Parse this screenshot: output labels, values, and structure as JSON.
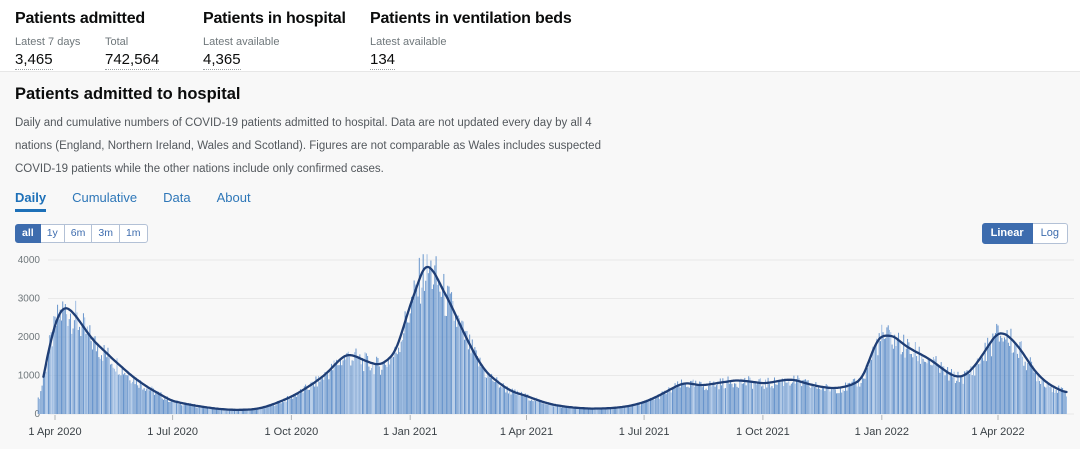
{
  "headline_stats": [
    {
      "title": "Patients admitted",
      "metrics": [
        {
          "label": "Latest 7 days",
          "value": "3,465"
        },
        {
          "label": "Total",
          "value": "742,564"
        }
      ]
    },
    {
      "title": "Patients in hospital",
      "metrics": [
        {
          "label": "Latest available",
          "value": "4,365"
        }
      ]
    },
    {
      "title": "Patients in ventilation beds",
      "metrics": [
        {
          "label": "Latest available",
          "value": "134"
        }
      ]
    }
  ],
  "card": {
    "title": "Patients admitted to hospital",
    "description_lines": [
      "Daily and cumulative numbers of COVID-19 patients admitted to hospital. Data are not updated every day by all 4",
      "nations (England, Northern Ireland, Wales and Scotland). Figures are not comparable as Wales includes suspected",
      "COVID-19 patients while the other nations include only confirmed cases."
    ],
    "tabs": [
      {
        "label": "Daily",
        "active": true
      },
      {
        "label": "Cumulative",
        "active": false
      },
      {
        "label": "Data",
        "active": false
      },
      {
        "label": "About",
        "active": false
      }
    ],
    "range_buttons": [
      {
        "label": "all",
        "active": true
      },
      {
        "label": "1y",
        "active": false
      },
      {
        "label": "6m",
        "active": false
      },
      {
        "label": "3m",
        "active": false
      },
      {
        "label": "1m",
        "active": false
      }
    ],
    "scale_toggle": [
      {
        "label": "Linear",
        "active": true
      },
      {
        "label": "Log",
        "active": false
      }
    ]
  },
  "colors": {
    "bar": "#6190ca",
    "bar_light": "#9cbbe2",
    "line": "#1f3e75",
    "grid": "#e9e9e9",
    "y_axis_text": "#6f777b",
    "x_axis_text": "#3a4146",
    "tick": "#b1b4b6",
    "accent_blue": "#3d6cae",
    "tab_blue": "#1d70b8"
  },
  "chart_data": {
    "type": "bar+line",
    "xlabel": "",
    "ylabel": "",
    "ylim": [
      0,
      4200
    ],
    "grid": true,
    "legend": "none",
    "y_ticks": [
      0,
      1000,
      2000,
      3000,
      4000
    ],
    "x_ticks": [
      {
        "label": "1 Apr 2020",
        "date": "2020-04-01"
      },
      {
        "label": "1 Jul 2020",
        "date": "2020-07-01"
      },
      {
        "label": "1 Oct 2020",
        "date": "2020-10-01"
      },
      {
        "label": "1 Jan 2021",
        "date": "2021-01-01"
      },
      {
        "label": "1 Apr 2021",
        "date": "2021-04-01"
      },
      {
        "label": "1 Jul 2021",
        "date": "2021-07-01"
      },
      {
        "label": "1 Oct 2021",
        "date": "2021-10-01"
      },
      {
        "label": "1 Jan 2022",
        "date": "2022-01-01"
      },
      {
        "label": "1 Apr 2022",
        "date": "2022-04-01"
      }
    ],
    "series": [
      {
        "name": "daily-admissions",
        "type": "bar",
        "derived_from": "7-day-average",
        "variation": [
          0.78,
          1.16
        ],
        "cap": 4150
      },
      {
        "name": "7-day-average",
        "type": "line",
        "line_start": "2020-03-23",
        "points": [
          [
            "2020-03-19",
            380
          ],
          [
            "2020-03-21",
            600
          ],
          [
            "2020-03-23",
            1000
          ],
          [
            "2020-03-26",
            1450
          ],
          [
            "2020-03-29",
            1950
          ],
          [
            "2020-04-01",
            2320
          ],
          [
            "2020-04-04",
            2600
          ],
          [
            "2020-04-08",
            2780
          ],
          [
            "2020-04-11",
            2750
          ],
          [
            "2020-04-15",
            2640
          ],
          [
            "2020-04-18",
            2500
          ],
          [
            "2020-04-22",
            2320
          ],
          [
            "2020-04-26",
            2120
          ],
          [
            "2020-05-01",
            1900
          ],
          [
            "2020-05-06",
            1740
          ],
          [
            "2020-05-11",
            1580
          ],
          [
            "2020-05-16",
            1420
          ],
          [
            "2020-05-21",
            1270
          ],
          [
            "2020-05-26",
            1120
          ],
          [
            "2020-06-01",
            950
          ],
          [
            "2020-06-08",
            780
          ],
          [
            "2020-06-15",
            630
          ],
          [
            "2020-06-22",
            500
          ],
          [
            "2020-06-27",
            400
          ],
          [
            "2020-07-01",
            340
          ],
          [
            "2020-07-10",
            270
          ],
          [
            "2020-07-20",
            210
          ],
          [
            "2020-08-01",
            150
          ],
          [
            "2020-08-10",
            120
          ],
          [
            "2020-08-20",
            105
          ],
          [
            "2020-09-01",
            120
          ],
          [
            "2020-09-08",
            160
          ],
          [
            "2020-09-15",
            230
          ],
          [
            "2020-09-22",
            320
          ],
          [
            "2020-10-01",
            450
          ],
          [
            "2020-10-08",
            580
          ],
          [
            "2020-10-15",
            730
          ],
          [
            "2020-10-22",
            890
          ],
          [
            "2020-10-29",
            1080
          ],
          [
            "2020-11-05",
            1330
          ],
          [
            "2020-11-10",
            1490
          ],
          [
            "2020-11-14",
            1545
          ],
          [
            "2020-11-19",
            1510
          ],
          [
            "2020-11-26",
            1400
          ],
          [
            "2020-12-02",
            1320
          ],
          [
            "2020-12-08",
            1280
          ],
          [
            "2020-12-12",
            1340
          ],
          [
            "2020-12-16",
            1450
          ],
          [
            "2020-12-20",
            1600
          ],
          [
            "2020-12-24",
            1950
          ],
          [
            "2020-12-28",
            2400
          ],
          [
            "2021-01-01",
            2840
          ],
          [
            "2021-01-05",
            3180
          ],
          [
            "2021-01-09",
            3620
          ],
          [
            "2021-01-13",
            3870
          ],
          [
            "2021-01-17",
            3800
          ],
          [
            "2021-01-21",
            3600
          ],
          [
            "2021-01-25",
            3310
          ],
          [
            "2021-02-01",
            2870
          ],
          [
            "2021-02-08",
            2360
          ],
          [
            "2021-02-15",
            1870
          ],
          [
            "2021-02-22",
            1430
          ],
          [
            "2021-03-01",
            1080
          ],
          [
            "2021-03-08",
            880
          ],
          [
            "2021-03-15",
            700
          ],
          [
            "2021-03-22",
            570
          ],
          [
            "2021-04-01",
            470
          ],
          [
            "2021-04-08",
            380
          ],
          [
            "2021-04-15",
            300
          ],
          [
            "2021-04-22",
            240
          ],
          [
            "2021-05-01",
            190
          ],
          [
            "2021-05-10",
            160
          ],
          [
            "2021-05-20",
            140
          ],
          [
            "2021-06-01",
            145
          ],
          [
            "2021-06-10",
            165
          ],
          [
            "2021-06-18",
            200
          ],
          [
            "2021-06-25",
            250
          ],
          [
            "2021-07-02",
            320
          ],
          [
            "2021-07-09",
            420
          ],
          [
            "2021-07-16",
            540
          ],
          [
            "2021-07-23",
            670
          ],
          [
            "2021-07-29",
            770
          ],
          [
            "2021-08-03",
            805
          ],
          [
            "2021-08-09",
            770
          ],
          [
            "2021-08-14",
            745
          ],
          [
            "2021-08-20",
            765
          ],
          [
            "2021-08-27",
            805
          ],
          [
            "2021-09-03",
            840
          ],
          [
            "2021-09-10",
            875
          ],
          [
            "2021-09-17",
            860
          ],
          [
            "2021-09-24",
            830
          ],
          [
            "2021-10-01",
            795
          ],
          [
            "2021-10-08",
            825
          ],
          [
            "2021-10-15",
            870
          ],
          [
            "2021-10-21",
            895
          ],
          [
            "2021-10-27",
            875
          ],
          [
            "2021-11-03",
            800
          ],
          [
            "2021-11-10",
            740
          ],
          [
            "2021-11-17",
            695
          ],
          [
            "2021-11-24",
            670
          ],
          [
            "2021-12-01",
            690
          ],
          [
            "2021-12-07",
            740
          ],
          [
            "2021-12-12",
            810
          ],
          [
            "2021-12-16",
            900
          ],
          [
            "2021-12-20",
            1180
          ],
          [
            "2021-12-24",
            1550
          ],
          [
            "2021-12-28",
            1880
          ],
          [
            "2022-01-01",
            2040
          ],
          [
            "2022-01-05",
            2030
          ],
          [
            "2022-01-09",
            2040
          ],
          [
            "2022-01-13",
            1950
          ],
          [
            "2022-01-19",
            1780
          ],
          [
            "2022-01-26",
            1640
          ],
          [
            "2022-02-02",
            1520
          ],
          [
            "2022-02-09",
            1380
          ],
          [
            "2022-02-16",
            1200
          ],
          [
            "2022-02-23",
            1030
          ],
          [
            "2022-03-01",
            960
          ],
          [
            "2022-03-07",
            1010
          ],
          [
            "2022-03-13",
            1210
          ],
          [
            "2022-03-19",
            1480
          ],
          [
            "2022-03-25",
            1800
          ],
          [
            "2022-03-31",
            2080
          ],
          [
            "2022-04-05",
            2110
          ],
          [
            "2022-04-10",
            2000
          ],
          [
            "2022-04-16",
            1780
          ],
          [
            "2022-04-22",
            1500
          ],
          [
            "2022-04-28",
            1180
          ],
          [
            "2022-05-05",
            920
          ],
          [
            "2022-05-12",
            740
          ],
          [
            "2022-05-18",
            640
          ],
          [
            "2022-05-24",
            550
          ]
        ]
      }
    ]
  }
}
